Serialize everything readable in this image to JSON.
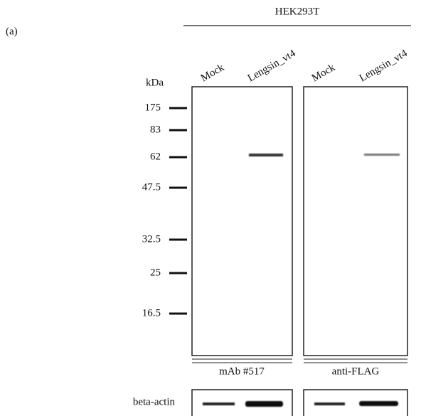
{
  "figure": {
    "panel_label": "(a)",
    "cell_line": "HEK293T",
    "lanes": [
      "Mock",
      "Lengsin_vt4",
      "Mock",
      "Lengsin_vt4"
    ],
    "marker_unit": "kDa",
    "markers": [
      "175",
      "83",
      "62",
      "47.5",
      "32.5",
      "25",
      "16.5"
    ],
    "antibodies": [
      "mAb #517",
      "anti-FLAG"
    ],
    "loading_control": "beta-actin"
  }
}
